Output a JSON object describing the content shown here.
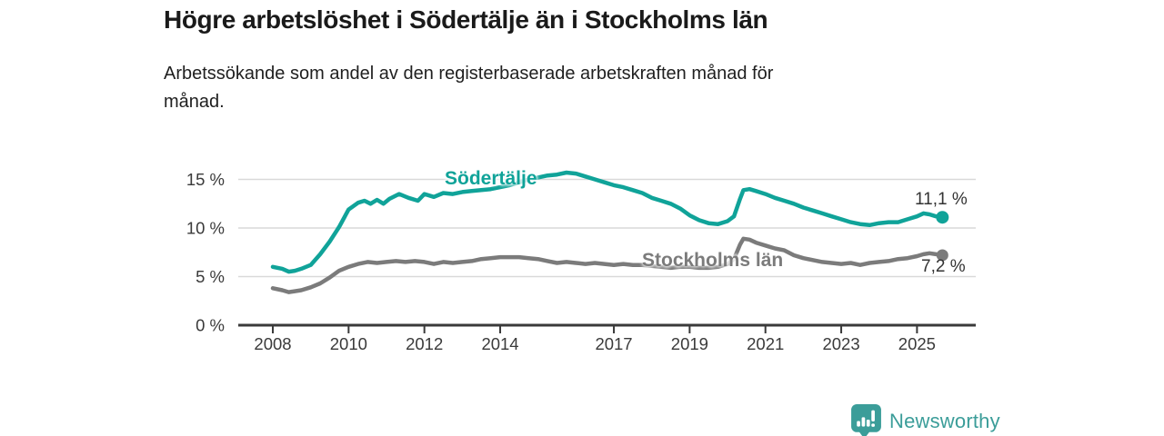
{
  "header": {
    "title": "Högre arbetslöshet i Södertälje än i Stockholms län",
    "subtitle": "Arbetssökande som andel av den registerbaserade arbetskraften månad för\nmånad."
  },
  "footer": {
    "brand": "Newsworthy",
    "logo_icon": "bar-chart-speech-pin-icon",
    "brand_color": "#3b9d99"
  },
  "colors": {
    "sodertalje": "#10a399",
    "stockholm": "#7b7b7b",
    "gridline": "#d9d9d9",
    "axis": "#3a3a3a",
    "text": "#1a1a1a"
  },
  "chart_data": {
    "type": "line",
    "title": "Högre arbetslöshet i Södertälje än i Stockholms län",
    "subtitle": "Arbetssökande som andel av den registerbaserade arbetskraften månad för månad.",
    "x_unit": "year (monthly series)",
    "ylim": [
      0,
      16
    ],
    "grid": "horizontal",
    "legend_position": "inline-labels",
    "yticks": [
      {
        "value": 0,
        "label": "0 %"
      },
      {
        "value": 5,
        "label": "5 %"
      },
      {
        "value": 10,
        "label": "10 %"
      },
      {
        "value": 15,
        "label": "15 %"
      }
    ],
    "xticks": [
      {
        "value": 2008,
        "label": "2008"
      },
      {
        "value": 2010,
        "label": "2010"
      },
      {
        "value": 2012,
        "label": "2012"
      },
      {
        "value": 2014,
        "label": "2014"
      },
      {
        "value": 2017,
        "label": "2017"
      },
      {
        "value": 2019,
        "label": "2019"
      },
      {
        "value": 2021,
        "label": "2021"
      },
      {
        "value": 2023,
        "label": "2023"
      },
      {
        "value": 2025,
        "label": "2025"
      }
    ],
    "series": [
      {
        "name": "Södertälje",
        "color": "#10a399",
        "end_value": 11.1,
        "end_label": "11,1 %",
        "points": [
          [
            2008.0,
            6.0
          ],
          [
            2008.25,
            5.8
          ],
          [
            2008.42,
            5.5
          ],
          [
            2008.58,
            5.6
          ],
          [
            2008.75,
            5.8
          ],
          [
            2009.0,
            6.2
          ],
          [
            2009.25,
            7.3
          ],
          [
            2009.5,
            8.6
          ],
          [
            2009.75,
            10.1
          ],
          [
            2010.0,
            11.9
          ],
          [
            2010.25,
            12.6
          ],
          [
            2010.42,
            12.8
          ],
          [
            2010.58,
            12.5
          ],
          [
            2010.75,
            12.9
          ],
          [
            2010.92,
            12.5
          ],
          [
            2011.08,
            13.0
          ],
          [
            2011.33,
            13.5
          ],
          [
            2011.58,
            13.1
          ],
          [
            2011.83,
            12.8
          ],
          [
            2012.0,
            13.5
          ],
          [
            2012.25,
            13.2
          ],
          [
            2012.5,
            13.6
          ],
          [
            2012.75,
            13.5
          ],
          [
            2013.0,
            13.7
          ],
          [
            2013.25,
            13.8
          ],
          [
            2013.5,
            13.9
          ],
          [
            2013.75,
            14.0
          ],
          [
            2014.0,
            14.2
          ],
          [
            2014.25,
            14.4
          ],
          [
            2014.5,
            14.7
          ],
          [
            2014.75,
            15.0
          ],
          [
            2015.0,
            15.2
          ],
          [
            2015.25,
            15.4
          ],
          [
            2015.5,
            15.5
          ],
          [
            2015.75,
            15.7
          ],
          [
            2016.0,
            15.6
          ],
          [
            2016.25,
            15.3
          ],
          [
            2016.5,
            15.0
          ],
          [
            2016.75,
            14.7
          ],
          [
            2017.0,
            14.4
          ],
          [
            2017.25,
            14.2
          ],
          [
            2017.5,
            13.9
          ],
          [
            2017.75,
            13.6
          ],
          [
            2018.0,
            13.1
          ],
          [
            2018.25,
            12.8
          ],
          [
            2018.5,
            12.5
          ],
          [
            2018.75,
            12.0
          ],
          [
            2019.0,
            11.3
          ],
          [
            2019.25,
            10.8
          ],
          [
            2019.5,
            10.5
          ],
          [
            2019.75,
            10.4
          ],
          [
            2020.0,
            10.7
          ],
          [
            2020.17,
            11.2
          ],
          [
            2020.33,
            13.0
          ],
          [
            2020.42,
            13.9
          ],
          [
            2020.58,
            14.0
          ],
          [
            2020.75,
            13.8
          ],
          [
            2021.0,
            13.5
          ],
          [
            2021.25,
            13.1
          ],
          [
            2021.5,
            12.8
          ],
          [
            2021.75,
            12.5
          ],
          [
            2022.0,
            12.1
          ],
          [
            2022.25,
            11.8
          ],
          [
            2022.5,
            11.5
          ],
          [
            2022.75,
            11.2
          ],
          [
            2023.0,
            10.9
          ],
          [
            2023.25,
            10.6
          ],
          [
            2023.5,
            10.4
          ],
          [
            2023.75,
            10.3
          ],
          [
            2024.0,
            10.5
          ],
          [
            2024.25,
            10.6
          ],
          [
            2024.5,
            10.6
          ],
          [
            2024.75,
            10.9
          ],
          [
            2025.0,
            11.2
          ],
          [
            2025.17,
            11.5
          ],
          [
            2025.33,
            11.4
          ],
          [
            2025.5,
            11.2
          ],
          [
            2025.67,
            11.1
          ]
        ]
      },
      {
        "name": "Stockholms län",
        "color": "#7b7b7b",
        "end_value": 7.2,
        "end_label": "7,2 %",
        "points": [
          [
            2008.0,
            3.8
          ],
          [
            2008.25,
            3.6
          ],
          [
            2008.42,
            3.4
          ],
          [
            2008.58,
            3.5
          ],
          [
            2008.75,
            3.6
          ],
          [
            2009.0,
            3.9
          ],
          [
            2009.25,
            4.3
          ],
          [
            2009.5,
            4.9
          ],
          [
            2009.75,
            5.6
          ],
          [
            2010.0,
            6.0
          ],
          [
            2010.25,
            6.3
          ],
          [
            2010.5,
            6.5
          ],
          [
            2010.75,
            6.4
          ],
          [
            2011.0,
            6.5
          ],
          [
            2011.25,
            6.6
          ],
          [
            2011.5,
            6.5
          ],
          [
            2011.75,
            6.6
          ],
          [
            2012.0,
            6.5
          ],
          [
            2012.25,
            6.3
          ],
          [
            2012.5,
            6.5
          ],
          [
            2012.75,
            6.4
          ],
          [
            2013.0,
            6.5
          ],
          [
            2013.25,
            6.6
          ],
          [
            2013.5,
            6.8
          ],
          [
            2013.75,
            6.9
          ],
          [
            2014.0,
            7.0
          ],
          [
            2014.25,
            7.0
          ],
          [
            2014.5,
            7.0
          ],
          [
            2014.75,
            6.9
          ],
          [
            2015.0,
            6.8
          ],
          [
            2015.25,
            6.6
          ],
          [
            2015.5,
            6.4
          ],
          [
            2015.75,
            6.5
          ],
          [
            2016.0,
            6.4
          ],
          [
            2016.25,
            6.3
          ],
          [
            2016.5,
            6.4
          ],
          [
            2016.75,
            6.3
          ],
          [
            2017.0,
            6.2
          ],
          [
            2017.25,
            6.3
          ],
          [
            2017.5,
            6.2
          ],
          [
            2017.75,
            6.2
          ],
          [
            2018.0,
            6.1
          ],
          [
            2018.25,
            6.0
          ],
          [
            2018.5,
            5.9
          ],
          [
            2018.75,
            6.0
          ],
          [
            2019.0,
            6.0
          ],
          [
            2019.25,
            5.9
          ],
          [
            2019.5,
            5.9
          ],
          [
            2019.75,
            6.0
          ],
          [
            2020.0,
            6.3
          ],
          [
            2020.17,
            6.8
          ],
          [
            2020.33,
            8.3
          ],
          [
            2020.42,
            8.9
          ],
          [
            2020.58,
            8.8
          ],
          [
            2020.75,
            8.5
          ],
          [
            2021.0,
            8.2
          ],
          [
            2021.25,
            7.9
          ],
          [
            2021.5,
            7.7
          ],
          [
            2021.75,
            7.2
          ],
          [
            2022.0,
            6.9
          ],
          [
            2022.25,
            6.7
          ],
          [
            2022.5,
            6.5
          ],
          [
            2022.75,
            6.4
          ],
          [
            2023.0,
            6.3
          ],
          [
            2023.25,
            6.4
          ],
          [
            2023.5,
            6.2
          ],
          [
            2023.75,
            6.4
          ],
          [
            2024.0,
            6.5
          ],
          [
            2024.25,
            6.6
          ],
          [
            2024.5,
            6.8
          ],
          [
            2024.75,
            6.9
          ],
          [
            2025.0,
            7.1
          ],
          [
            2025.17,
            7.3
          ],
          [
            2025.33,
            7.4
          ],
          [
            2025.5,
            7.3
          ],
          [
            2025.67,
            7.2
          ]
        ]
      }
    ]
  }
}
